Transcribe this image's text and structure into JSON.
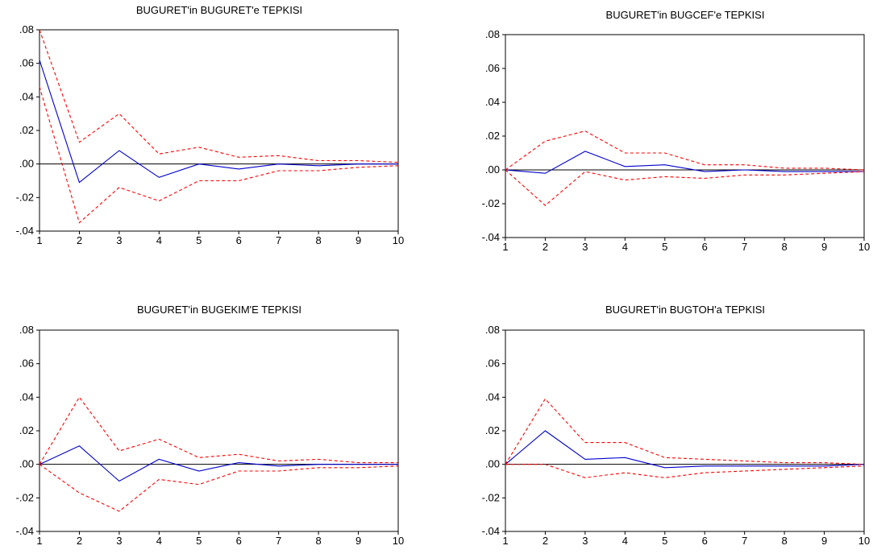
{
  "figure": {
    "background": "#ffffff",
    "ci_color": "#ff0000",
    "response_color": "#0000cc",
    "axis_color": "#000000"
  },
  "chart_data": [
    {
      "type": "line",
      "title": "BUGURET'in BUGURET'e TEPKISI",
      "x": [
        1,
        2,
        3,
        4,
        5,
        6,
        7,
        8,
        9,
        10
      ],
      "x_tick_labels": [
        "1",
        "2",
        "3",
        "4",
        "5",
        "6",
        "7",
        "8",
        "9",
        "10"
      ],
      "ylim": [
        -0.04,
        0.08
      ],
      "y_ticks": [
        0.08,
        0.06,
        0.04,
        0.02,
        0.0,
        -0.02,
        -0.04
      ],
      "y_tick_labels": [
        ".08",
        ".06",
        ".04",
        ".02",
        ".00",
        "-.02",
        "-.04"
      ],
      "grid": false,
      "zero_line": true,
      "series": [
        {
          "role": "response",
          "style": "solid",
          "values": [
            0.062,
            -0.011,
            0.008,
            -0.008,
            0.0,
            -0.003,
            0.0,
            -0.001,
            0.0,
            0.0
          ]
        },
        {
          "role": "upper-band",
          "style": "dashed",
          "values": [
            0.08,
            0.013,
            0.03,
            0.006,
            0.01,
            0.004,
            0.005,
            0.002,
            0.002,
            0.001
          ]
        },
        {
          "role": "lower-band",
          "style": "dashed",
          "values": [
            0.046,
            -0.035,
            -0.014,
            -0.022,
            -0.01,
            -0.01,
            -0.004,
            -0.004,
            -0.002,
            -0.001
          ]
        }
      ]
    },
    {
      "type": "line",
      "title": "BUGURET'in BUGCEF'e TEPKISI",
      "x": [
        1,
        2,
        3,
        4,
        5,
        6,
        7,
        8,
        9,
        10
      ],
      "x_tick_labels": [
        "1",
        "2",
        "3",
        "4",
        "5",
        "6",
        "7",
        "8",
        "9",
        "10"
      ],
      "ylim": [
        -0.04,
        0.08
      ],
      "y_ticks": [
        0.08,
        0.06,
        0.04,
        0.02,
        0.0,
        -0.02,
        -0.04
      ],
      "y_tick_labels": [
        ".08",
        ".06",
        ".04",
        ".02",
        ".00",
        "-.02",
        "-.04"
      ],
      "grid": false,
      "zero_line": true,
      "series": [
        {
          "role": "response",
          "style": "solid",
          "values": [
            0.0,
            -0.002,
            0.011,
            0.002,
            0.003,
            -0.001,
            0.0,
            -0.001,
            -0.001,
            -0.001
          ]
        },
        {
          "role": "upper-band",
          "style": "dashed",
          "values": [
            0.0,
            0.017,
            0.023,
            0.01,
            0.01,
            0.003,
            0.003,
            0.001,
            0.001,
            0.0
          ]
        },
        {
          "role": "lower-band",
          "style": "dashed",
          "values": [
            0.0,
            -0.021,
            -0.001,
            -0.006,
            -0.004,
            -0.005,
            -0.003,
            -0.003,
            -0.002,
            -0.001
          ]
        }
      ]
    },
    {
      "type": "line",
      "title": "BUGURET'in BUGEKIM'E TEPKISI",
      "x": [
        1,
        2,
        3,
        4,
        5,
        6,
        7,
        8,
        9,
        10
      ],
      "x_tick_labels": [
        "1",
        "2",
        "3",
        "4",
        "5",
        "6",
        "7",
        "8",
        "9",
        "10"
      ],
      "ylim": [
        -0.04,
        0.08
      ],
      "y_ticks": [
        0.08,
        0.06,
        0.04,
        0.02,
        0.0,
        -0.02,
        -0.04
      ],
      "y_tick_labels": [
        ".08",
        ".06",
        ".04",
        ".02",
        ".00",
        "-.02",
        "-.04"
      ],
      "grid": false,
      "zero_line": true,
      "series": [
        {
          "role": "response",
          "style": "solid",
          "values": [
            0.0,
            0.011,
            -0.01,
            0.003,
            -0.004,
            0.001,
            -0.001,
            0.0,
            0.0,
            0.0
          ]
        },
        {
          "role": "upper-band",
          "style": "dashed",
          "values": [
            0.0,
            0.04,
            0.008,
            0.015,
            0.004,
            0.006,
            0.002,
            0.003,
            0.001,
            0.001
          ]
        },
        {
          "role": "lower-band",
          "style": "dashed",
          "values": [
            0.0,
            -0.017,
            -0.028,
            -0.009,
            -0.012,
            -0.004,
            -0.004,
            -0.002,
            -0.002,
            -0.001
          ]
        }
      ]
    },
    {
      "type": "line",
      "title": "BUGURET'in BUGTOH'a TEPKISI",
      "x": [
        1,
        2,
        3,
        4,
        5,
        6,
        7,
        8,
        9,
        10
      ],
      "x_tick_labels": [
        "1",
        "2",
        "3",
        "4",
        "5",
        "6",
        "7",
        "8",
        "9",
        "10"
      ],
      "ylim": [
        -0.04,
        0.08
      ],
      "y_ticks": [
        0.08,
        0.06,
        0.04,
        0.02,
        0.0,
        -0.02,
        -0.04
      ],
      "y_tick_labels": [
        ".08",
        ".06",
        ".04",
        ".02",
        ".00",
        "-.02",
        "-.04"
      ],
      "grid": false,
      "zero_line": true,
      "series": [
        {
          "role": "response",
          "style": "solid",
          "values": [
            0.0,
            0.02,
            0.003,
            0.004,
            -0.002,
            -0.001,
            -0.001,
            -0.001,
            -0.001,
            0.0
          ]
        },
        {
          "role": "upper-band",
          "style": "dashed",
          "values": [
            0.0,
            0.039,
            0.013,
            0.013,
            0.004,
            0.003,
            0.002,
            0.001,
            0.001,
            0.0
          ]
        },
        {
          "role": "lower-band",
          "style": "dashed",
          "values": [
            0.0,
            0.0,
            -0.008,
            -0.005,
            -0.008,
            -0.005,
            -0.004,
            -0.003,
            -0.002,
            -0.001
          ]
        }
      ]
    }
  ]
}
